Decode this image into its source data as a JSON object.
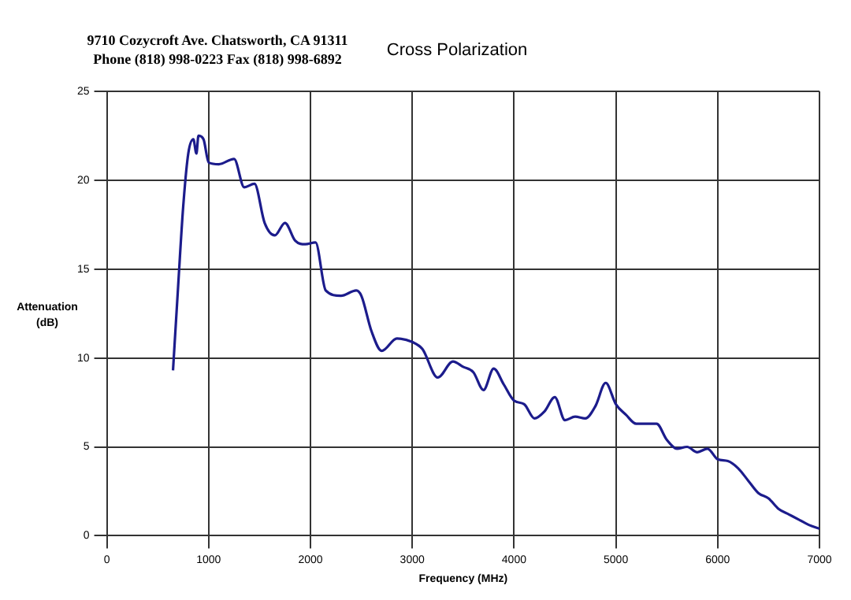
{
  "chart_data": {
    "type": "line",
    "title": "Cross Polarization",
    "xlabel": "Frequency (MHz)",
    "ylabel": "Attenuation (dB)",
    "annotations": [
      "9710 Cozycroft Ave. Chatsworth, CA 91311",
      "Phone (818) 998-0223 Fax (818) 998-6892"
    ],
    "xlim": [
      0,
      7000
    ],
    "xticks": [
      0,
      1000,
      2000,
      3000,
      4000,
      5000,
      6000,
      7000
    ],
    "ylim": [
      0,
      25
    ],
    "yticks": [
      0,
      5,
      10,
      15,
      20,
      25
    ],
    "grid": true,
    "legend": false,
    "marker": "none",
    "line_style": "solid",
    "series": [
      {
        "color": "#1c1c8c",
        "x": [
          650,
          700,
          750,
          800,
          850,
          880,
          900,
          950,
          1000,
          1100,
          1250,
          1350,
          1450,
          1550,
          1650,
          1750,
          1850,
          1950,
          2050,
          2150,
          2300,
          2450,
          2500,
          2600,
          2700,
          2850,
          3000,
          3100,
          3250,
          3400,
          3500,
          3600,
          3700,
          3800,
          3900,
          4000,
          4100,
          4200,
          4300,
          4400,
          4500,
          4600,
          4700,
          4800,
          4900,
          5000,
          5100,
          5200,
          5400,
          5500,
          5600,
          5700,
          5800,
          5900,
          6000,
          6100,
          6200,
          6300,
          6400,
          6500,
          6600,
          6700,
          6800,
          6900,
          7000
        ],
        "values": [
          9.3,
          14,
          18.5,
          21.5,
          22.3,
          21.5,
          22.5,
          22.3,
          21,
          20.9,
          21.2,
          19.6,
          19.8,
          17.6,
          16.9,
          17.6,
          16.6,
          16.4,
          16.5,
          13.8,
          13.5,
          13.8,
          13.5,
          11.5,
          10.4,
          11.1,
          10.9,
          10.5,
          8.9,
          9.8,
          9.5,
          9.2,
          8.2,
          9.4,
          8.5,
          7.6,
          7.4,
          6.6,
          7,
          7.8,
          6.5,
          6.7,
          6.6,
          7.3,
          8.6,
          7.4,
          6.8,
          6.3,
          6.3,
          5.4,
          4.9,
          5,
          4.7,
          4.9,
          4.3,
          4.2,
          3.8,
          3.1,
          2.4,
          2.1,
          1.5,
          1.2,
          0.9,
          0.6,
          0.4
        ]
      }
    ]
  }
}
